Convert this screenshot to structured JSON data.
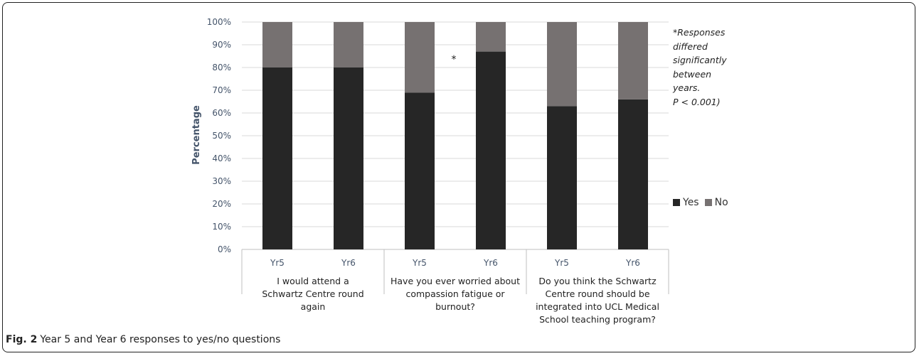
{
  "chart_data": {
    "type": "bar",
    "stacked": true,
    "percent": true,
    "groups": [
      {
        "label_lines": [
          "I would attend a",
          "Schwartz Centre round",
          "again"
        ],
        "bars": [
          "Yr5",
          "Yr6"
        ]
      },
      {
        "label_lines": [
          "Have you ever worried about",
          "compassion fatigue or",
          "burnout?"
        ],
        "bars": [
          "Yr5",
          "Yr6"
        ]
      },
      {
        "label_lines": [
          "Do you think the Schwartz",
          "Centre round should be",
          "integrated into UCL Medical",
          "School teaching program?"
        ],
        "bars": [
          "Yr5",
          "Yr6"
        ]
      }
    ],
    "categories": [
      "Yr5",
      "Yr6",
      "Yr5",
      "Yr6",
      "Yr5",
      "Yr6"
    ],
    "series": [
      {
        "name": "Yes",
        "color": "#262626",
        "values": [
          80,
          80,
          69,
          87,
          63,
          66
        ]
      },
      {
        "name": "No",
        "color": "#767171",
        "values": [
          20,
          20,
          31,
          13,
          37,
          34
        ]
      }
    ],
    "ylabel": "Percentage",
    "ylim": [
      0,
      100
    ],
    "yticks": [
      "0%",
      "10%",
      "20%",
      "30%",
      "40%",
      "50%",
      "60%",
      "70%",
      "80%",
      "90%",
      "100%"
    ],
    "grid": true,
    "legend_position": "right",
    "annotation_marker": "*",
    "annotation_text": [
      "*Responses",
      "differed",
      "significantly",
      "between",
      "years.",
      "P < 0.001)"
    ]
  },
  "caption": {
    "label": "Fig. 2",
    "text": "Year 5 and Year 6 responses to yes/no questions"
  }
}
